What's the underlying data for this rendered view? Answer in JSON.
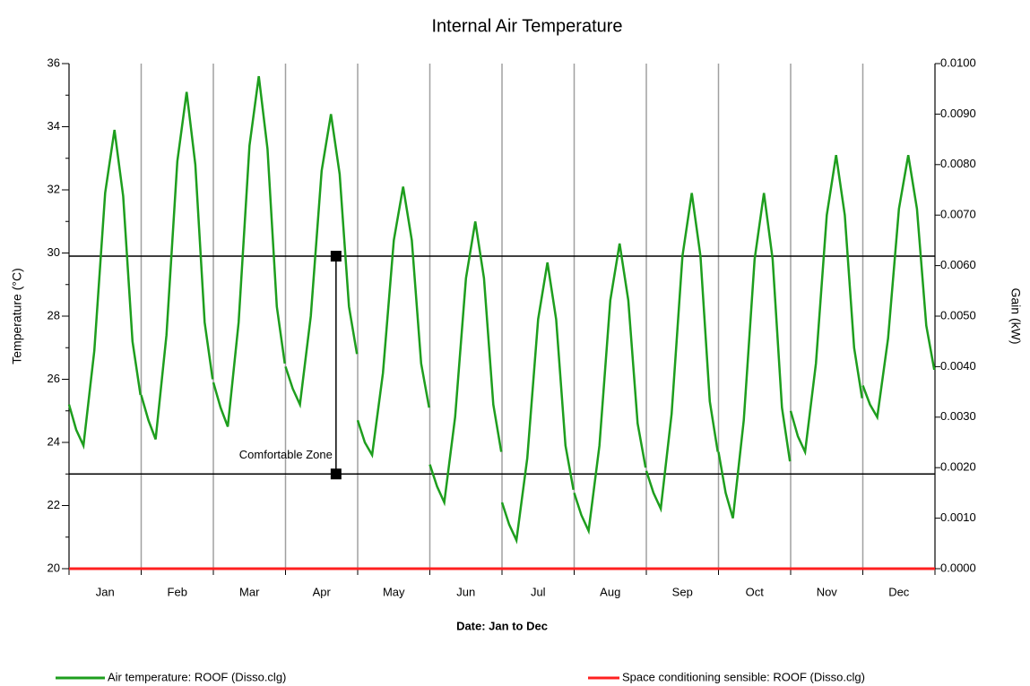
{
  "chart_data": {
    "type": "line",
    "title": "Internal Air Temperature",
    "x_label": "Date: Jan to Dec",
    "y_label": "Temperature (°C)",
    "y2_label": "Gain (kW)",
    "categories": [
      "Jan",
      "Feb",
      "Mar",
      "Apr",
      "May",
      "Jun",
      "Jul",
      "Aug",
      "Sep",
      "Oct",
      "Nov",
      "Dec"
    ],
    "xlim": [
      0,
      12
    ],
    "xticks": [
      0,
      1,
      2,
      3,
      4,
      5,
      6,
      7,
      8,
      9,
      10,
      11,
      12
    ],
    "ylim": [
      20,
      36
    ],
    "yticks": [
      20,
      22,
      24,
      26,
      28,
      30,
      32,
      34,
      36
    ],
    "yminor": [
      21,
      23,
      25,
      27,
      29,
      31,
      33,
      35
    ],
    "y2lim": [
      0,
      0.01
    ],
    "y2ticks": [
      {
        "value": 0,
        "label": "0.0000"
      },
      {
        "value": 0.001,
        "label": "0.0010"
      },
      {
        "value": 0.002,
        "label": "0.0020"
      },
      {
        "value": 0.003,
        "label": "0.0030"
      },
      {
        "value": 0.004,
        "label": "0.0040"
      },
      {
        "value": 0.005,
        "label": "0.0050"
      },
      {
        "value": 0.006,
        "label": "0.0060"
      },
      {
        "value": 0.007,
        "label": "0.0070"
      },
      {
        "value": 0.008,
        "label": "0.0080"
      },
      {
        "value": 0.009,
        "label": "0.0090"
      },
      {
        "value": 0.01,
        "label": "0.0100"
      }
    ],
    "grid": true,
    "legend": "bottom",
    "series": [
      {
        "name": "Air temperature: ROOF (Disso.clg)",
        "color": "#1e9e1e",
        "x": [
          0,
          0.1,
          0.2,
          0.35,
          0.5,
          0.63,
          0.75,
          0.88,
          0.99,
          null,
          1,
          1.1,
          1.2,
          1.35,
          1.5,
          1.63,
          1.75,
          1.88,
          1.99,
          null,
          2,
          2.1,
          2.2,
          2.35,
          2.5,
          2.63,
          2.75,
          2.88,
          2.99,
          null,
          3,
          3.1,
          3.2,
          3.35,
          3.5,
          3.63,
          3.75,
          3.88,
          3.99,
          null,
          4,
          4.1,
          4.2,
          4.35,
          4.5,
          4.63,
          4.75,
          4.88,
          4.99,
          null,
          5,
          5.1,
          5.2,
          5.35,
          5.5,
          5.63,
          5.75,
          5.88,
          5.99,
          null,
          6,
          6.1,
          6.2,
          6.35,
          6.5,
          6.63,
          6.75,
          6.88,
          6.99,
          null,
          7,
          7.1,
          7.2,
          7.35,
          7.5,
          7.63,
          7.75,
          7.88,
          7.99,
          null,
          8,
          8.1,
          8.2,
          8.35,
          8.5,
          8.63,
          8.75,
          8.88,
          8.99,
          null,
          9,
          9.1,
          9.2,
          9.35,
          9.5,
          9.63,
          9.75,
          9.88,
          9.99,
          null,
          10,
          10.1,
          10.2,
          10.35,
          10.5,
          10.63,
          10.75,
          10.88,
          10.99,
          null,
          11,
          11.1,
          11.2,
          11.35,
          11.5,
          11.63,
          11.75,
          11.88,
          11.99
        ],
        "values": [
          25.2,
          24.4,
          23.9,
          26.9,
          31.9,
          33.9,
          31.8,
          27.2,
          25.5,
          null,
          25.5,
          24.7,
          24.1,
          27.4,
          32.9,
          35.1,
          32.8,
          27.8,
          26.0,
          null,
          25.9,
          25.1,
          24.5,
          27.8,
          33.4,
          35.6,
          33.3,
          28.3,
          26.5,
          null,
          26.4,
          25.7,
          25.2,
          28.0,
          32.6,
          34.4,
          32.5,
          28.3,
          26.8,
          null,
          24.7,
          24.0,
          23.6,
          26.2,
          30.4,
          32.1,
          30.4,
          26.5,
          25.1,
          null,
          23.3,
          22.6,
          22.1,
          24.8,
          29.2,
          31.0,
          29.2,
          25.2,
          23.7,
          null,
          22.1,
          21.4,
          20.9,
          23.5,
          27.9,
          29.7,
          27.9,
          23.9,
          22.5,
          null,
          22.4,
          21.7,
          21.2,
          23.9,
          28.5,
          30.3,
          28.5,
          24.6,
          23.2,
          null,
          23.1,
          22.4,
          21.9,
          24.9,
          29.9,
          31.9,
          29.9,
          25.3,
          23.7,
          null,
          23.7,
          22.4,
          21.6,
          24.7,
          29.8,
          31.9,
          29.8,
          25.1,
          23.4,
          null,
          25.0,
          24.2,
          23.7,
          26.5,
          31.2,
          33.1,
          31.2,
          27.0,
          25.4,
          null,
          25.8,
          25.2,
          24.8,
          27.3,
          31.4,
          33.1,
          31.4,
          27.7,
          26.3
        ]
      },
      {
        "name": "Space conditioning sensible: ROOF (Disso.clg)",
        "color": "#ff2020",
        "axis": "y2",
        "x": [
          0,
          12
        ],
        "values": [
          0,
          0
        ]
      }
    ],
    "annotation": {
      "text": "Comfortable Zone",
      "upper": 29.9,
      "lower": 23.0,
      "x": 3.7
    }
  }
}
